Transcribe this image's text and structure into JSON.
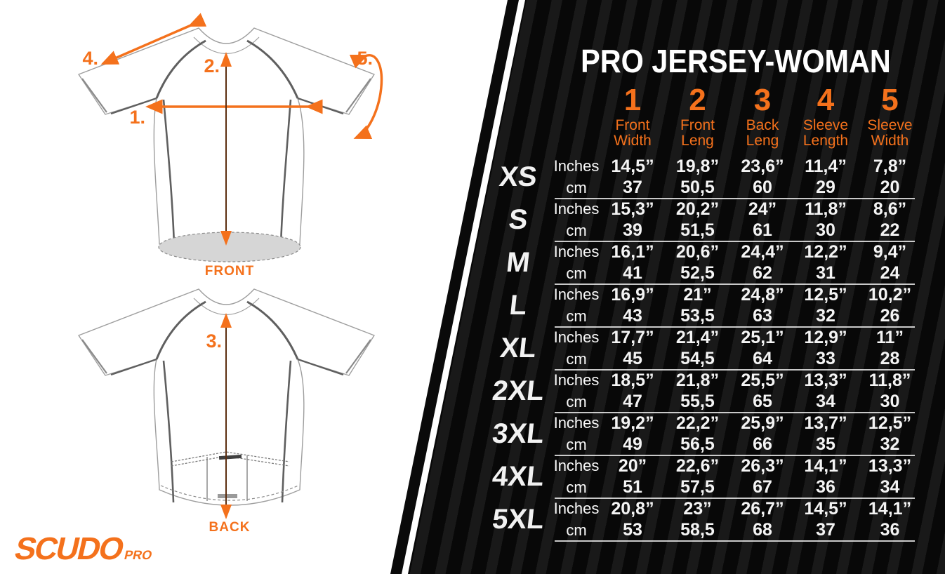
{
  "title": "PRO JERSEY-WOMAN",
  "brand": {
    "name": "SCUDO",
    "sub": "PRO"
  },
  "colors": {
    "accent": "#f4711c",
    "panel_bg": "#080808",
    "panel_stripe": "#1c1c1c",
    "separator": "#c8c8c8",
    "hem_fill": "#d6d6d6"
  },
  "diagram": {
    "front_label": "FRONT",
    "back_label": "BACK",
    "arrow_labels": {
      "a1": "1.",
      "a2": "2.",
      "a3": "3.",
      "a4": "4.",
      "a5": "5."
    }
  },
  "chart_data": {
    "type": "table",
    "title": "PRO JERSEY-WOMAN",
    "measure_legend": [
      "Front Width",
      "Front Leng",
      "Back Leng",
      "Sleeve Length",
      "Sleeve Width"
    ],
    "units": [
      "Inches",
      "cm"
    ],
    "rows": [
      {
        "size": "XS",
        "inches": [
          14.5,
          19.8,
          23.6,
          11.4,
          7.8
        ],
        "cm": [
          37,
          50.5,
          60,
          29,
          20
        ]
      },
      {
        "size": "S",
        "inches": [
          15.3,
          20.2,
          24.0,
          11.8,
          8.6
        ],
        "cm": [
          39,
          51.5,
          61,
          30,
          22
        ]
      },
      {
        "size": "M",
        "inches": [
          16.1,
          20.6,
          24.4,
          12.2,
          9.4
        ],
        "cm": [
          41,
          52.5,
          62,
          31,
          24
        ]
      },
      {
        "size": "L",
        "inches": [
          16.9,
          21.0,
          24.8,
          12.5,
          10.2
        ],
        "cm": [
          43,
          53.5,
          63,
          32,
          26
        ]
      },
      {
        "size": "XL",
        "inches": [
          17.7,
          21.4,
          25.1,
          12.9,
          11.0
        ],
        "cm": [
          45,
          54.5,
          64,
          33,
          28
        ]
      },
      {
        "size": "2XL",
        "inches": [
          18.5,
          21.8,
          25.5,
          13.3,
          11.8
        ],
        "cm": [
          47,
          55.5,
          65,
          34,
          30
        ]
      },
      {
        "size": "3XL",
        "inches": [
          19.2,
          22.2,
          25.9,
          13.7,
          12.5
        ],
        "cm": [
          49,
          56.5,
          66,
          35,
          32
        ]
      },
      {
        "size": "4XL",
        "inches": [
          20.0,
          22.6,
          26.3,
          14.1,
          13.3
        ],
        "cm": [
          51,
          57.5,
          67,
          36,
          34
        ]
      },
      {
        "size": "5XL",
        "inches": [
          20.8,
          23.0,
          26.7,
          14.5,
          14.1
        ],
        "cm": [
          53,
          58.5,
          68,
          37,
          36
        ]
      }
    ]
  },
  "table": {
    "unit_inches": "Inches",
    "unit_cm": "cm",
    "columns": [
      {
        "num": "1",
        "label": [
          "Front",
          "Width"
        ]
      },
      {
        "num": "2",
        "label": [
          "Front",
          "Leng"
        ]
      },
      {
        "num": "3",
        "label": [
          "Back",
          "Leng"
        ]
      },
      {
        "num": "4",
        "label": [
          "Sleeve",
          "Length"
        ]
      },
      {
        "num": "5",
        "label": [
          "Sleeve",
          "Width"
        ]
      }
    ],
    "sizes": [
      {
        "label": "XS",
        "inches": [
          "14,5”",
          "19,8”",
          "23,6”",
          "11,4”",
          "7,8”"
        ],
        "cm": [
          "37",
          "50,5",
          "60",
          "29",
          "20"
        ]
      },
      {
        "label": "S",
        "inches": [
          "15,3”",
          "20,2”",
          "24”",
          "11,8”",
          "8,6”"
        ],
        "cm": [
          "39",
          "51,5",
          "61",
          "30",
          "22"
        ]
      },
      {
        "label": "M",
        "inches": [
          "16,1”",
          "20,6”",
          "24,4”",
          "12,2”",
          "9,4”"
        ],
        "cm": [
          "41",
          "52,5",
          "62",
          "31",
          "24"
        ]
      },
      {
        "label": "L",
        "inches": [
          "16,9”",
          "21”",
          "24,8”",
          "12,5”",
          "10,2”"
        ],
        "cm": [
          "43",
          "53,5",
          "63",
          "32",
          "26"
        ]
      },
      {
        "label": "XL",
        "inches": [
          "17,7”",
          "21,4”",
          "25,1”",
          "12,9”",
          "11”"
        ],
        "cm": [
          "45",
          "54,5",
          "64",
          "33",
          "28"
        ]
      },
      {
        "label": "2XL",
        "inches": [
          "18,5”",
          "21,8”",
          "25,5”",
          "13,3”",
          "11,8”"
        ],
        "cm": [
          "47",
          "55,5",
          "65",
          "34",
          "30"
        ]
      },
      {
        "label": "3XL",
        "inches": [
          "19,2”",
          "22,2”",
          "25,9”",
          "13,7”",
          "12,5”"
        ],
        "cm": [
          "49",
          "56,5",
          "66",
          "35",
          "32"
        ]
      },
      {
        "label": "4XL",
        "inches": [
          "20”",
          "22,6”",
          "26,3”",
          "14,1”",
          "13,3”"
        ],
        "cm": [
          "51",
          "57,5",
          "67",
          "36",
          "34"
        ]
      },
      {
        "label": "5XL",
        "inches": [
          "20,8”",
          "23”",
          "26,7”",
          "14,5”",
          "14,1”"
        ],
        "cm": [
          "53",
          "58,5",
          "68",
          "37",
          "36"
        ]
      }
    ]
  }
}
